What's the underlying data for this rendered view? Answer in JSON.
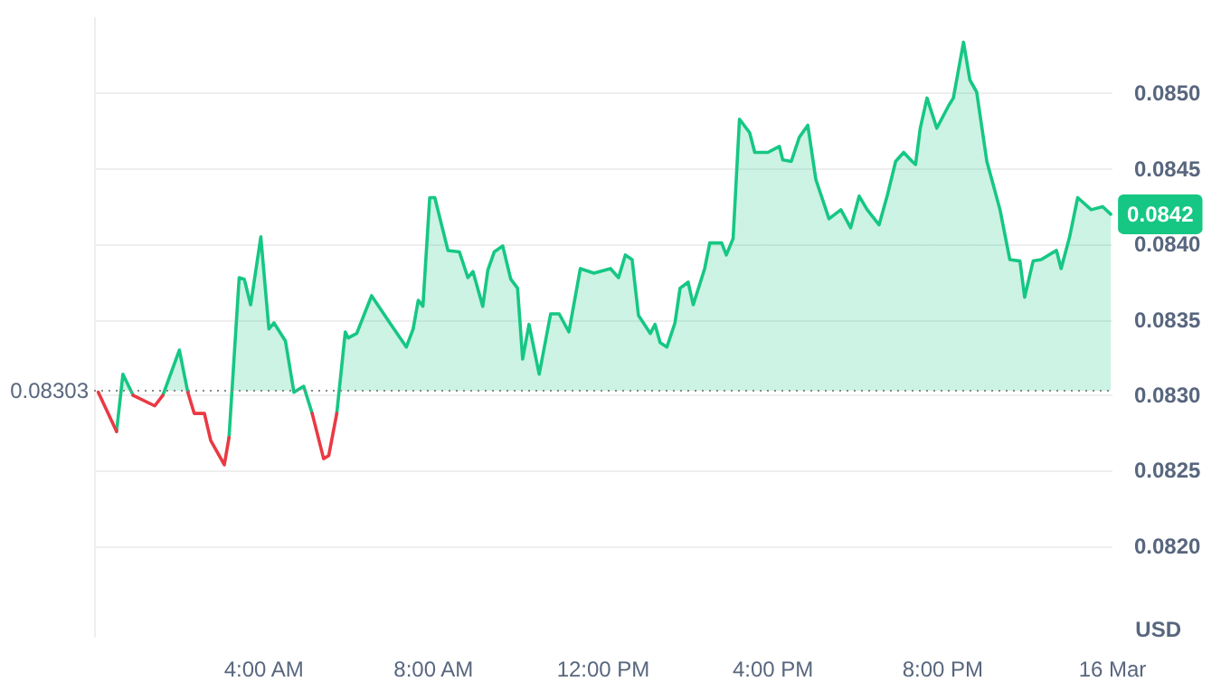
{
  "chart_data": {
    "type": "area",
    "ylabel": "USD",
    "x": [
      0.53,
      0.68,
      0.92,
      1.43,
      1.62,
      2.01,
      2.21,
      2.36,
      2.6,
      2.75,
      3.07,
      3.18,
      3.42,
      3.54,
      3.69,
      3.93,
      4.12,
      4.24,
      4.51,
      4.71,
      4.94,
      5.14,
      5.41,
      5.53,
      5.72,
      5.92,
      5.99,
      6.19,
      6.54,
      6.97,
      7.36,
      7.52,
      7.64,
      7.75,
      7.91,
      8.03,
      8.34,
      8.61,
      8.81,
      8.93,
      9.16,
      9.28,
      9.43,
      9.63,
      9.82,
      9.98,
      10.1,
      10.25,
      10.49,
      10.76,
      10.96,
      11.19,
      11.46,
      11.78,
      12.17,
      12.36,
      12.52,
      12.68,
      12.83,
      13.11,
      13.22,
      13.34,
      13.5,
      13.69,
      13.81,
      14.0,
      14.12,
      14.39,
      14.51,
      14.79,
      14.9,
      15.06,
      15.21,
      15.45,
      15.57,
      15.88,
      16.15,
      16.23,
      16.43,
      16.62,
      16.82,
      17.01,
      17.32,
      17.6,
      17.83,
      18.03,
      18.22,
      18.5,
      18.69,
      18.89,
      19.08,
      19.28,
      19.36,
      19.47,
      19.63,
      19.86,
      20.14,
      20.25,
      20.49,
      20.64,
      20.8,
      21.04,
      21.35,
      21.58,
      21.82,
      21.93,
      22.13,
      22.32,
      22.68,
      22.79,
      22.99,
      23.18,
      23.5,
      23.77,
      23.96
    ],
    "series": [
      {
        "color": "#16c784",
        "values": [
          0.08276,
          0.08314,
          0.083,
          null,
          0.083,
          0.0833,
          0.08302,
          null,
          null,
          null,
          null,
          0.08272,
          0.08378,
          0.08377,
          0.0836,
          0.08405,
          0.08344,
          0.08348,
          0.08336,
          0.08302,
          0.08306,
          0.08288,
          null,
          null,
          0.08288,
          0.08342,
          0.08338,
          0.08341,
          0.08366,
          0.08348,
          0.08332,
          0.08344,
          0.08363,
          0.08359,
          0.08431,
          0.08431,
          0.08396,
          0.08395,
          0.08378,
          0.08382,
          0.08359,
          0.08383,
          0.08395,
          0.08399,
          0.08377,
          0.08371,
          0.08324,
          0.08347,
          0.08314,
          0.08354,
          0.08354,
          0.08342,
          0.08384,
          0.08381,
          0.08384,
          0.08378,
          0.08393,
          0.0839,
          0.08353,
          0.08341,
          0.08347,
          0.08335,
          0.08332,
          0.08348,
          0.08371,
          0.08375,
          0.0836,
          0.08384,
          0.08401,
          0.08401,
          0.08393,
          0.08404,
          0.08483,
          0.08474,
          0.08461,
          0.08461,
          0.08465,
          0.08456,
          0.08455,
          0.08471,
          0.08479,
          0.08443,
          0.08417,
          0.08423,
          0.08411,
          0.08432,
          0.08423,
          0.08413,
          0.08432,
          0.08455,
          0.08461,
          0.08455,
          0.08453,
          0.08477,
          0.08497,
          0.08477,
          0.08492,
          0.08497,
          0.08534,
          0.08509,
          0.08501,
          0.08455,
          0.08423,
          0.0839,
          0.08389,
          0.08365,
          0.08389,
          0.0839,
          0.08396,
          0.08384,
          0.08405,
          0.08431,
          0.08423,
          0.08425,
          0.0842
        ]
      },
      {
        "type": "line",
        "color": "#ea3943",
        "x": [
          0.1,
          0.53,
          0.68,
          0.92,
          1.43,
          1.62,
          2.01,
          2.21,
          2.36,
          2.6,
          2.75,
          3.07,
          3.18,
          3.42,
          5.14,
          5.41,
          5.53,
          5.72
        ],
        "values": [
          0.08302,
          0.08276,
          null,
          0.083,
          0.08293,
          0.083,
          null,
          0.08302,
          0.08288,
          0.08288,
          0.0827,
          0.08254,
          0.08272,
          null,
          0.08288,
          0.08258,
          0.0826,
          0.08288
        ]
      }
    ],
    "ref_lines": [
      {
        "axis": "y",
        "value": 0.08303,
        "label": "0.08303",
        "color": "#888888",
        "line_style": "dotted"
      }
    ],
    "annotations": [
      {
        "text": "0.0842",
        "x": 23.96,
        "y": 0.0842
      }
    ],
    "xlim": [
      0,
      24
    ],
    "xticks": [
      {
        "value": 4,
        "label": "4:00 AM"
      },
      {
        "value": 8,
        "label": "8:00 AM"
      },
      {
        "value": 12,
        "label": "12:00 PM"
      },
      {
        "value": 16,
        "label": "4:00 PM"
      },
      {
        "value": 20,
        "label": "8:00 PM"
      },
      {
        "value": 24,
        "label": "16 Mar"
      }
    ],
    "ylim": [
      0.0814,
      0.0855
    ],
    "yticks": [
      {
        "value": 0.082,
        "label": "0.0820"
      },
      {
        "value": 0.0825,
        "label": "0.0825"
      },
      {
        "value": 0.083,
        "label": "0.0830"
      },
      {
        "value": 0.0835,
        "label": "0.0835"
      },
      {
        "value": 0.084,
        "label": "0.0840"
      },
      {
        "value": 0.0845,
        "label": "0.0845"
      },
      {
        "value": 0.085,
        "label": "0.0850"
      }
    ],
    "grid": "y",
    "marker": "none",
    "line_style": "solid"
  }
}
